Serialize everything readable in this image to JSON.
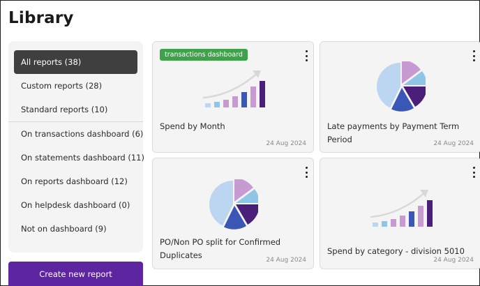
{
  "page": {
    "title": "Library"
  },
  "sidebar": {
    "groups": [
      [
        {
          "label": "All reports (38)",
          "active": true
        },
        {
          "label": "Custom reports (28)",
          "active": false
        },
        {
          "label": "Standard reports (10)",
          "active": false
        }
      ],
      [
        {
          "label": "On transactions dashboard (6)",
          "active": false
        },
        {
          "label": "On statements dashboard (11)",
          "active": false
        },
        {
          "label": "On reports dashboard (12)",
          "active": false
        },
        {
          "label": "On helpdesk dashboard (0)",
          "active": false
        },
        {
          "label": "Not on dashboard (9)",
          "active": false
        }
      ]
    ]
  },
  "actions": {
    "create_label": "Create new report"
  },
  "cards": [
    {
      "name": "Spend by Month",
      "date": "24 Aug 2024",
      "tag": "transactions dashboard",
      "illustration": "bar-chart-icon"
    },
    {
      "name": "Late payments by Payment Term Period",
      "date": "24 Aug 2024",
      "tag": "",
      "illustration": "pie-chart-icon"
    },
    {
      "name": "PO/Non PO split for Confirmed Duplicates",
      "date": "24 Aug 2024",
      "tag": "",
      "illustration": "pie-chart-icon"
    },
    {
      "name": "Spend by category - division 5010",
      "date": "24 Aug 2024",
      "tag": "",
      "illustration": "bar-chart-icon"
    }
  ],
  "colors": {
    "active_item": "#3f3f3f",
    "create_button": "#5d25a0",
    "tag": "#3fa14a",
    "illus_light_blue": "#bcd6f2",
    "illus_sky": "#8fc6e8",
    "illus_lilac": "#c79bd1",
    "illus_blue": "#3b57b5",
    "illus_purple": "#4a1f7a"
  }
}
